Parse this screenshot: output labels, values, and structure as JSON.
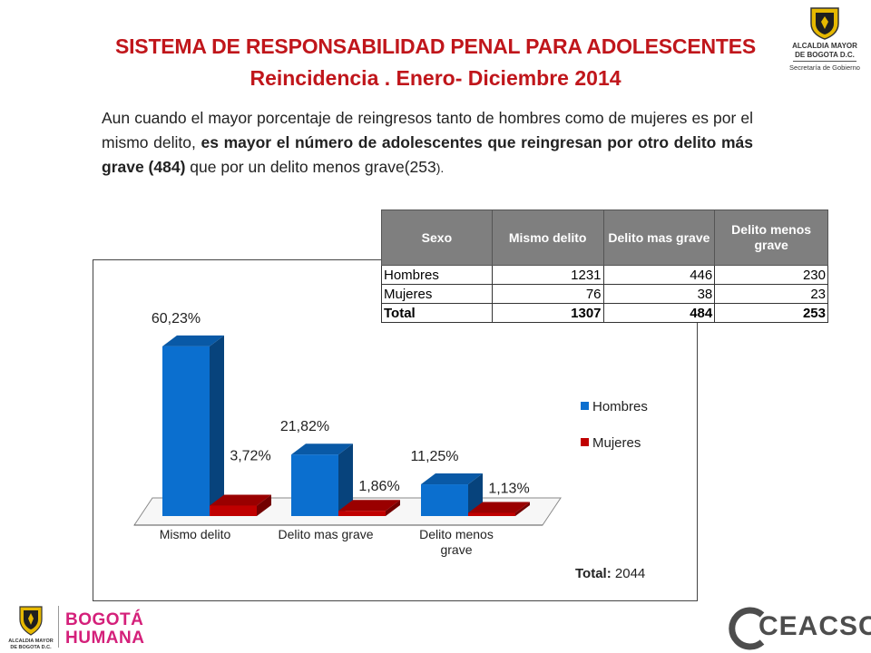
{
  "header": {
    "title_line1": "SISTEMA DE RESPONSABILIDAD PENAL PARA ADOLESCENTES",
    "title_line2": "Reincidencia . Enero- Diciembre 2014",
    "logo_line1": "ALCALDIA MAYOR",
    "logo_line2": "DE BOGOTA D.C.",
    "logo_line3": "Secretaría de Gobierno"
  },
  "paragraph": {
    "part1": "Aun cuando el mayor porcentaje de reingresos tanto de hombres como de mujeres es por el mismo delito, ",
    "bold": "es mayor el número de adolescentes que reingresan por otro delito más grave (484)",
    "part2": " que por un delito menos grave(253",
    "part3": ")."
  },
  "table": {
    "headers": [
      "Sexo",
      "Mismo delito",
      "Delito mas grave",
      "Delito menos grave"
    ],
    "rows": [
      [
        "Hombres",
        "1231",
        "446",
        "230"
      ],
      [
        "Mujeres",
        "76",
        "38",
        "23"
      ],
      [
        "Total",
        "1307",
        "484",
        "253"
      ]
    ],
    "header_color": "#7f7f7f"
  },
  "chart_data": {
    "type": "bar",
    "style": "3d-clustered",
    "categories": [
      "Mismo delito",
      "Delito mas grave",
      "Delito menos grave"
    ],
    "series": [
      {
        "name": "Hombres",
        "values": [
          60.23,
          21.82,
          11.25
        ],
        "labels": [
          "60,23%",
          "21,82%",
          "11,25%"
        ],
        "color": "#0b6fcf"
      },
      {
        "name": "Mujeres",
        "values": [
          3.72,
          1.86,
          1.13
        ],
        "labels": [
          "3,72%",
          "1,86%",
          "1,13%"
        ],
        "color": "#c00000"
      }
    ],
    "ylim": [
      0,
      65
    ],
    "grid": false,
    "legend_position": "right",
    "total_label": "Total:",
    "total_value": "2044"
  },
  "footer": {
    "left_logo_text1": "ALCALDIA MAYOR",
    "left_logo_text2": "DE BOGOTA D.C.",
    "bogota_line1": "BOGOTÁ",
    "bogota_line2": "HUMANA",
    "ceacsc": "CEACSC",
    "colors": {
      "bogota": "#d4207a",
      "ceacsc": "#4d4d4d"
    }
  }
}
